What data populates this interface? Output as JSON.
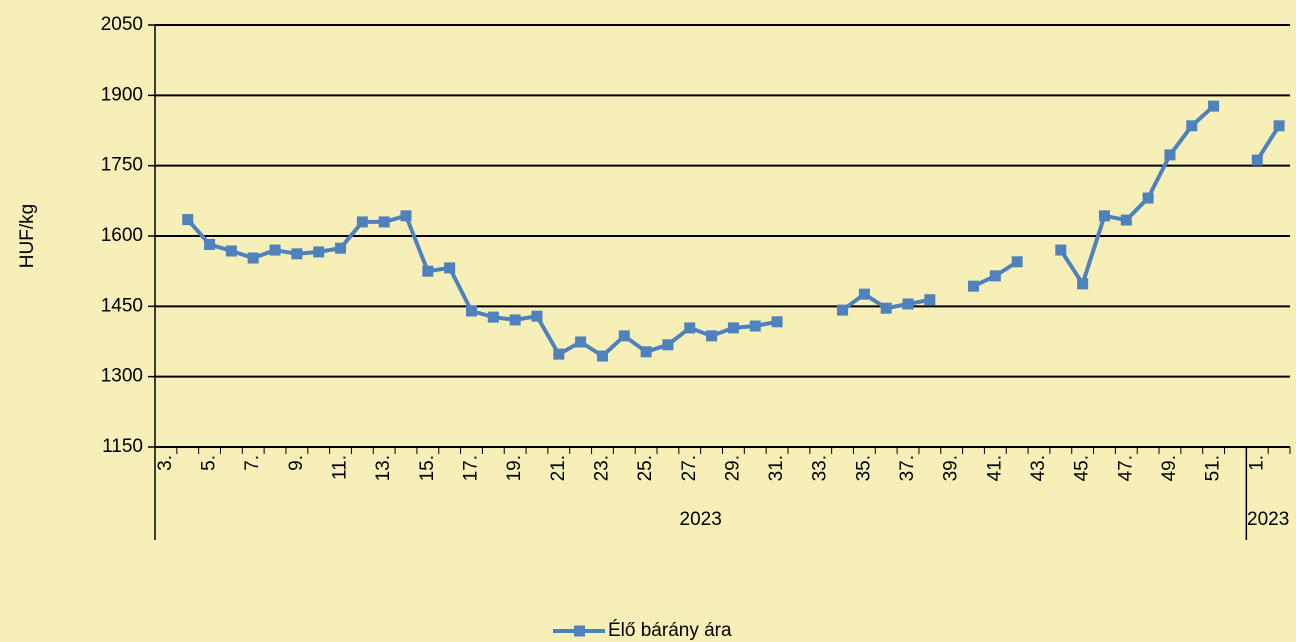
{
  "chart_data": {
    "type": "line",
    "y_label": "HUF/kg",
    "categories": [
      "3.",
      null,
      "5.",
      null,
      "7.",
      null,
      "9.",
      null,
      "11.",
      null,
      "13.",
      null,
      "15.",
      null,
      "17.",
      null,
      "19.",
      null,
      "21.",
      null,
      "23.",
      null,
      "25.",
      null,
      "27.",
      null,
      "29.",
      null,
      "31.",
      null,
      "33.",
      null,
      "35.",
      null,
      "37.",
      null,
      "39.",
      null,
      "41.",
      null,
      "43.",
      null,
      "45.",
      null,
      "47.",
      null,
      "49.",
      null,
      "51.",
      null,
      "1.",
      null
    ],
    "groups": [
      {
        "label": "2023",
        "size": 50
      },
      {
        "label": "2023",
        "size": 2
      }
    ],
    "series": [
      {
        "name": "Élő bárány ára",
        "color": "#4f81bd",
        "values": [
          null,
          1635,
          1582,
          1568,
          1553,
          1570,
          1562,
          1566,
          1574,
          1630,
          1630,
          1643,
          1525,
          1532,
          1440,
          1427,
          1421,
          1429,
          1348,
          1374,
          1344,
          1387,
          1353,
          1368,
          1404,
          1387,
          1404,
          1408,
          1417,
          null,
          null,
          1442,
          1476,
          1446,
          1455,
          1464,
          null,
          1493,
          1515,
          1545,
          null,
          1570,
          1498,
          1643,
          1634,
          1681,
          1773,
          1835,
          1877,
          null,
          1762,
          1835
        ]
      }
    ],
    "ylim": [
      1150,
      2050
    ],
    "yticks": [
      1150,
      1300,
      1450,
      1600,
      1750,
      1900,
      2050
    ],
    "grid": true,
    "legend": "bottom"
  }
}
